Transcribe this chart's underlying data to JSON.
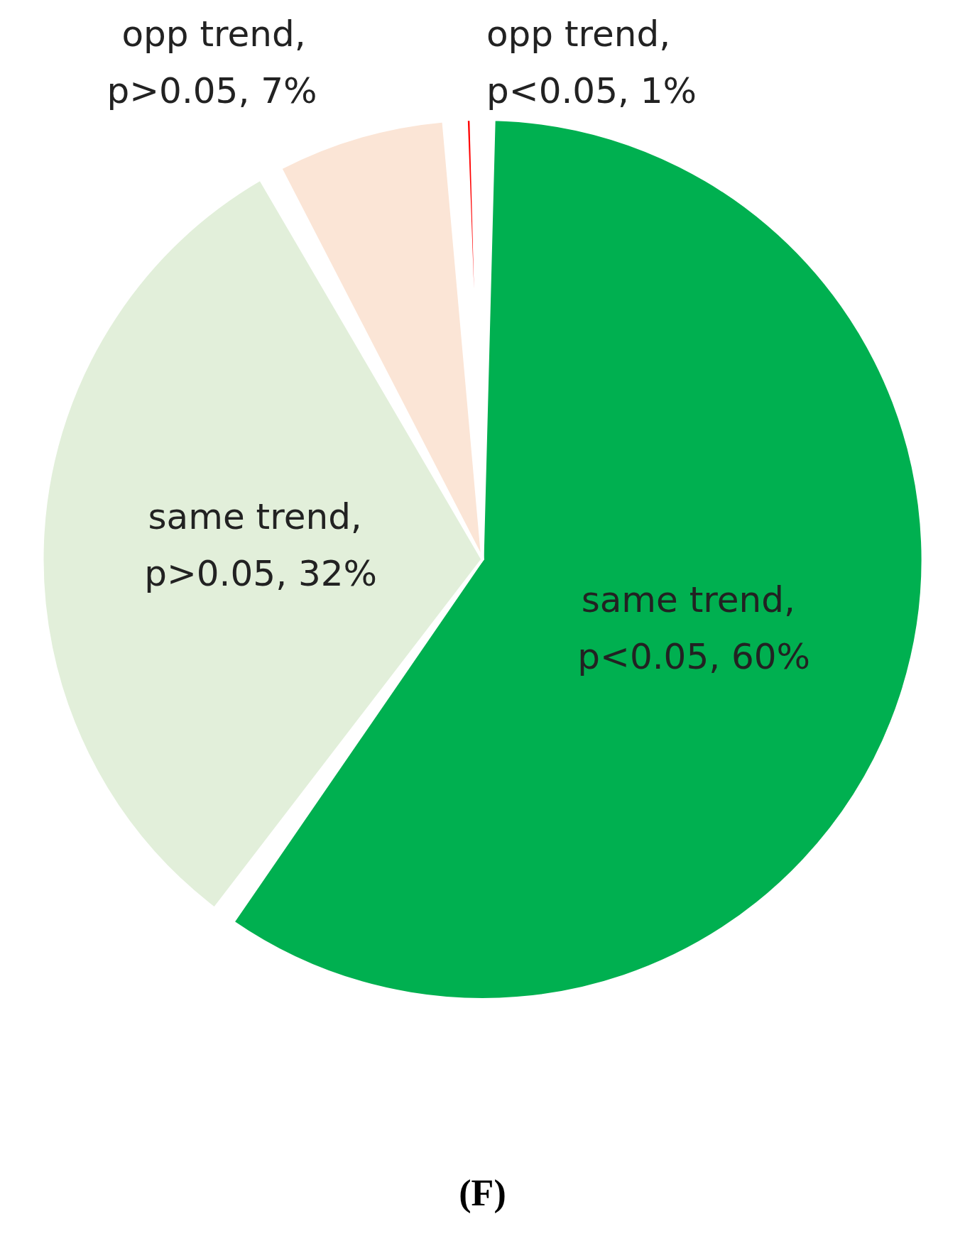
{
  "chart_data": {
    "type": "pie",
    "title": "(F)",
    "categories": [
      "same trend, p<0.05",
      "same trend, p>0.05",
      "opp trend, p>0.05",
      "opp trend, p<0.05"
    ],
    "values": [
      60,
      32,
      7,
      1
    ],
    "value_labels": [
      "60%",
      "32%",
      "7%",
      "1%"
    ],
    "colors": [
      "#00b050",
      "#e2efda",
      "#fbe5d6",
      "#ff0000"
    ]
  }
}
